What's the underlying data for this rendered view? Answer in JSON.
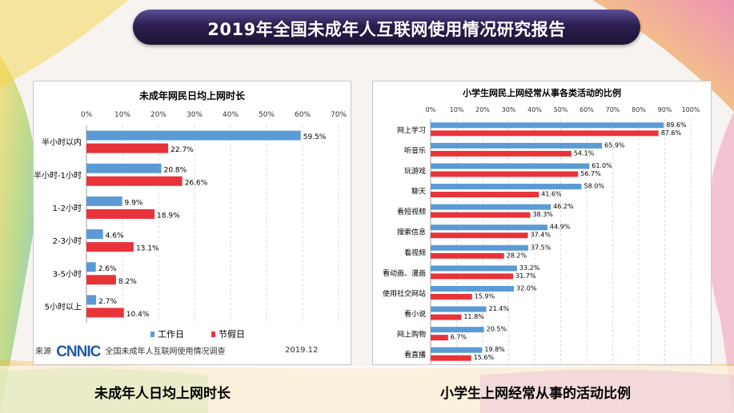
{
  "page": {
    "title": "2019年全国未成年人互联网使用情况研究报告",
    "caption_left": "未成年人日均上网时长",
    "caption_right": "小学生上网经常从事的活动比例",
    "source_label": "来源",
    "source_logo": "CNNIC",
    "source_text": "全国未成年人互联网使用情况调查",
    "source_date": "2019.12"
  },
  "colors": {
    "work": "#5b9bd5",
    "holiday": "#e8333a",
    "banner": "#2b1d4e",
    "grid": "#d9d9d9"
  },
  "chart_data": [
    {
      "type": "bar",
      "orientation": "horizontal",
      "title": "未成年网民日均上网时长",
      "categories": [
        "半小时以内",
        "半小时-1小时",
        "1-2小时",
        "2-3小时",
        "3-5小时",
        "5小时以上"
      ],
      "series": [
        {
          "name": "工作日",
          "values": [
            59.5,
            20.8,
            9.9,
            4.6,
            2.6,
            2.7
          ]
        },
        {
          "name": "节假日",
          "values": [
            22.7,
            26.6,
            18.9,
            13.1,
            8.2,
            10.4
          ]
        }
      ],
      "xlim": [
        0,
        70
      ],
      "ticks": [
        "0%",
        "10%",
        "20%",
        "30%",
        "40%",
        "50%",
        "60%",
        "70%"
      ],
      "grid": true,
      "legend": "bottom"
    },
    {
      "type": "bar",
      "orientation": "horizontal",
      "title": "小学生网民上网经常从事各类活动的比例",
      "categories": [
        "网上学习",
        "听音乐",
        "玩游戏",
        "聊天",
        "看短视频",
        "搜索信息",
        "看视频",
        "看动画、漫画",
        "使用社交网站",
        "看小说",
        "网上购物",
        "看直播"
      ],
      "series": [
        {
          "values": [
            89.6,
            65.9,
            61.0,
            58.0,
            46.2,
            44.9,
            37.5,
            33.2,
            32.0,
            21.4,
            20.5,
            19.8
          ]
        },
        {
          "values": [
            87.6,
            54.1,
            56.7,
            41.6,
            38.3,
            37.4,
            28.2,
            31.7,
            15.9,
            11.8,
            6.7,
            15.6
          ]
        }
      ],
      "xlim": [
        0,
        100
      ],
      "ticks": [
        "0%",
        "10%",
        "20%",
        "30%",
        "40%",
        "50%",
        "60%",
        "70%",
        "80%",
        "90%",
        "100%"
      ],
      "grid": true
    }
  ]
}
